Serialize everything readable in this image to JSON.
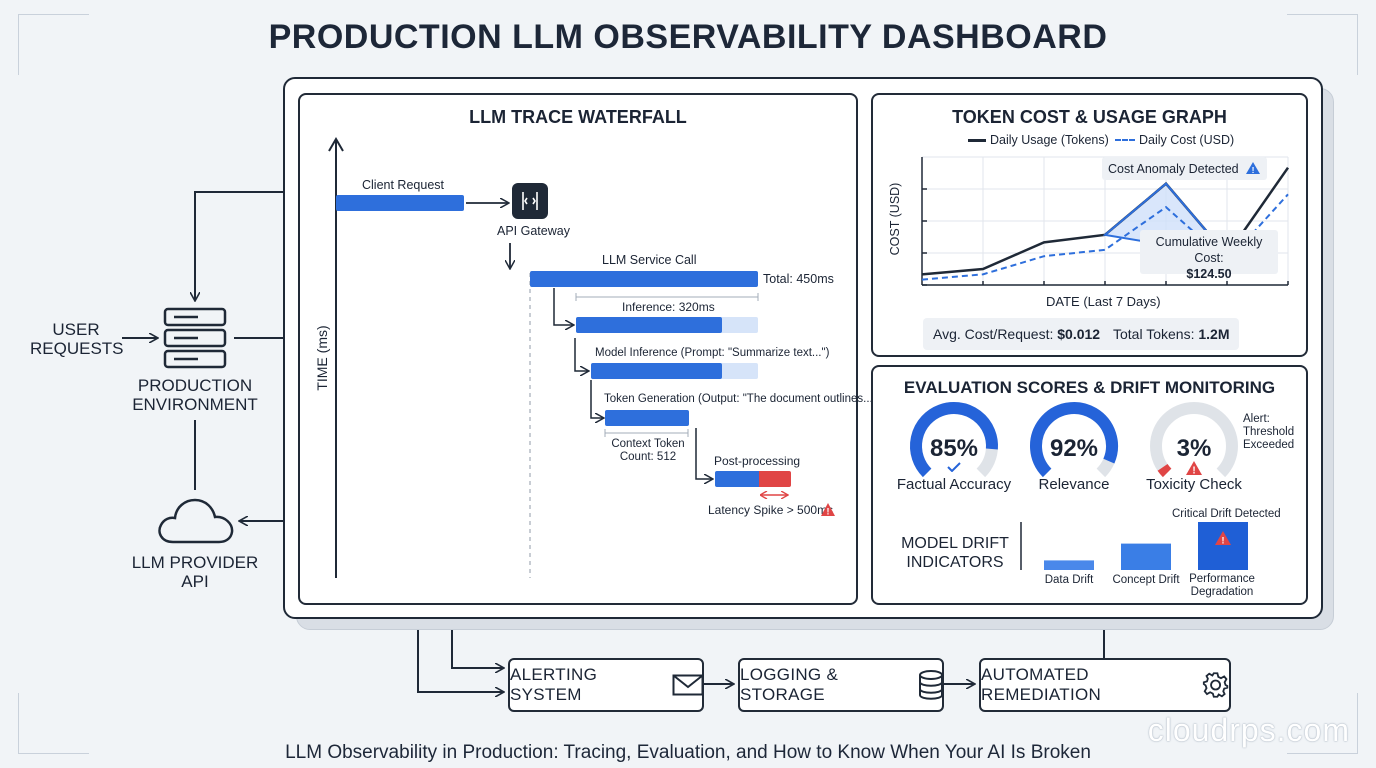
{
  "title": "PRODUCTION LLM OBSERVABILITY DASHBOARD",
  "caption": "LLM Observability in Production: Tracing, Evaluation, and How to Know When Your AI Is Broken",
  "watermark": "cloudrps.com",
  "left": {
    "user_requests": [
      "USER",
      "REQUESTS"
    ],
    "production_env": [
      "PRODUCTION",
      "ENVIRONMENT"
    ],
    "llm_provider": [
      "LLM PROVIDER",
      "API"
    ]
  },
  "trace": {
    "title": "LLM TRACE WATERFALL",
    "y_axis": "TIME (ms)",
    "client_request": "Client Request",
    "api_gateway": "API Gateway",
    "llm_service_call": "LLM Service Call",
    "total": "Total: 450ms",
    "inference": "Inference: 320ms",
    "model_inference": "Model Inference (Prompt: \"Summarize text...\")",
    "token_generation": "Token Generation (Output: \"The document outlines...\")",
    "context_token": [
      "Context Token",
      "Count: 512"
    ],
    "post_processing": "Post-processing",
    "latency_spike": "Latency Spike > 500ms"
  },
  "token_cost": {
    "title": "TOKEN COST & USAGE GRAPH",
    "legend_usage": "Daily Usage (Tokens)",
    "legend_cost": "Daily Cost (USD)",
    "ylabel": "COST (USD)",
    "xlabel": "DATE (Last 7 Days)",
    "anomaly": "Cost Anomaly Detected",
    "cumulative_label": "Cumulative Weekly Cost:",
    "cumulative_value": "$124.50",
    "avg_label": "Avg. Cost/Request:",
    "avg_value": "$0.012",
    "tokens_label": "Total Tokens:",
    "tokens_value": "1.2M"
  },
  "evaluation": {
    "title": "EVALUATION SCORES & DRIFT MONITORING",
    "alert": [
      "Alert:",
      "Threshold",
      "Exceeded"
    ],
    "gauges": [
      {
        "label": "Factual Accuracy",
        "value_text": "85%",
        "value": 0.85,
        "color": "#2563d9"
      },
      {
        "label": "Relevance",
        "value_text": "92%",
        "value": 0.92,
        "color": "#2563d9"
      },
      {
        "label": "Toxicity Check",
        "value_text": "3%",
        "value": 0.03,
        "color": "#e04545"
      }
    ],
    "drift_title": [
      "MODEL DRIFT",
      "INDICATORS"
    ],
    "critical_drift": "Critical Drift Detected",
    "drift_bars": [
      {
        "label": "Data Drift",
        "value": 0.2
      },
      {
        "label": "Concept Drift",
        "value": 0.55
      },
      {
        "label": "Performance Degradation",
        "value": 1.0
      }
    ]
  },
  "bottom": {
    "alerting": "ALERTING SYSTEM",
    "logging": "LOGGING & STORAGE",
    "remediation": "AUTOMATED REMEDIATION"
  },
  "chart_data": {
    "type": "line",
    "title": "TOKEN COST & USAGE GRAPH",
    "xlabel": "DATE (Last 7 Days)",
    "ylabel": "COST (USD)",
    "x": [
      1,
      2,
      3,
      4,
      5,
      6,
      7
    ],
    "series": [
      {
        "name": "Daily Usage (Tokens)",
        "values": [
          0.1,
          0.15,
          0.4,
          0.47,
          0.95,
          0.28,
          1.1
        ],
        "style": "solid",
        "color": "#1f2937"
      },
      {
        "name": "Daily Cost (USD)",
        "values": [
          0.05,
          0.1,
          0.27,
          0.33,
          0.73,
          0.22,
          0.85
        ],
        "style": "dashed",
        "color": "#2e6fdc"
      }
    ],
    "grid": true,
    "legend": "top"
  }
}
